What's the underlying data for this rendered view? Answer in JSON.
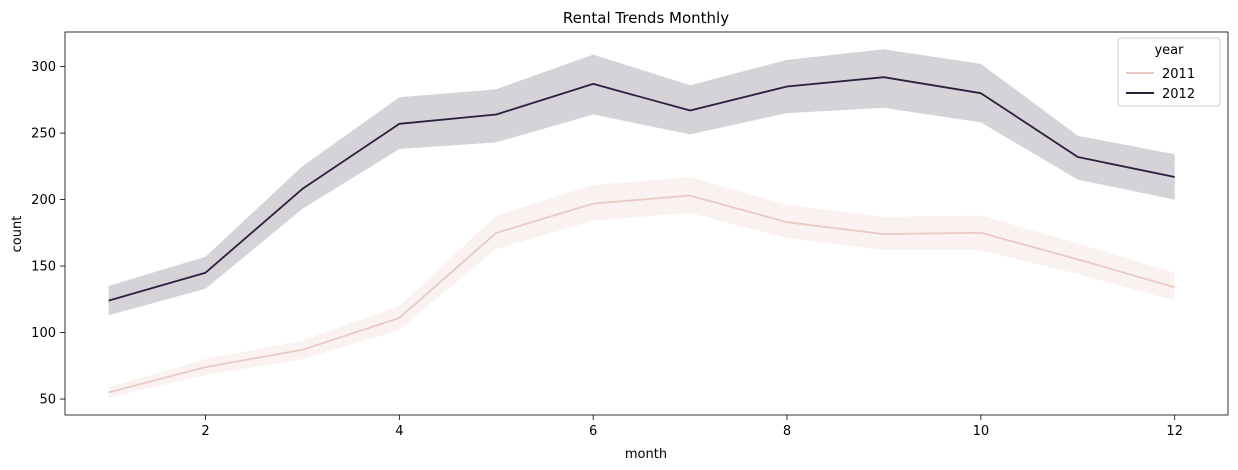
{
  "chart_data": {
    "type": "line",
    "title": "Rental Trends Monthly",
    "xlabel": "month",
    "ylabel": "count",
    "xlim": [
      0.55,
      12.55
    ],
    "ylim": [
      38,
      326
    ],
    "x_ticks": [
      2,
      4,
      6,
      8,
      10,
      12
    ],
    "y_ticks": [
      50,
      100,
      150,
      200,
      250,
      300
    ],
    "grid": false,
    "legend": {
      "title": "year",
      "placement": "top-right"
    },
    "x": [
      1,
      2,
      3,
      4,
      5,
      6,
      7,
      8,
      9,
      10,
      11,
      12
    ],
    "series": [
      {
        "name": "2011",
        "color": "#e8c9c4",
        "band_color": "#f2d9d5",
        "values": [
          55,
          74,
          87,
          111,
          175,
          197,
          203,
          183,
          174,
          175,
          155,
          134
        ],
        "ci_low": [
          51,
          68,
          80,
          102,
          163,
          184,
          190,
          171,
          162,
          162,
          144,
          124
        ],
        "ci_high": [
          59,
          80,
          94,
          120,
          188,
          211,
          217,
          196,
          187,
          188,
          167,
          145
        ]
      },
      {
        "name": "2012",
        "color": "#2b1f3e",
        "band_color": "#2b1f3e",
        "values": [
          124,
          145,
          208,
          257,
          264,
          287,
          267,
          285,
          292,
          280,
          232,
          217
        ],
        "ci_low": [
          113,
          133,
          193,
          238,
          243,
          264,
          249,
          265,
          269,
          258,
          215,
          200
        ],
        "ci_high": [
          135,
          157,
          225,
          277,
          283,
          309,
          286,
          305,
          313,
          302,
          248,
          234
        ]
      }
    ]
  }
}
